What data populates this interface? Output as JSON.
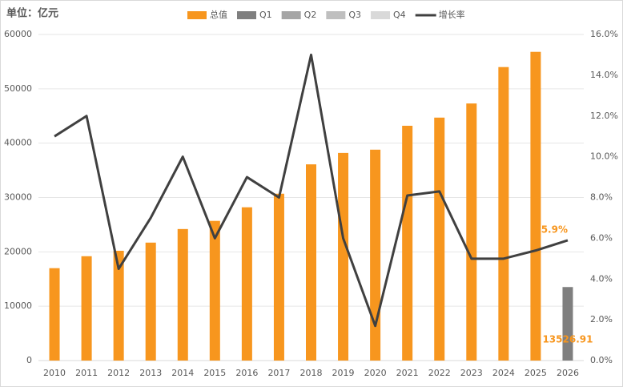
{
  "chart_data": {
    "type": "bar",
    "title": "单位：亿元",
    "categories": [
      "2010",
      "2011",
      "2012",
      "2013",
      "2014",
      "2015",
      "2016",
      "2017",
      "2018",
      "2019",
      "2020",
      "2021",
      "2022",
      "2023",
      "2024",
      "2025",
      "2026"
    ],
    "series": [
      {
        "name": "总值",
        "color": "#f7961e",
        "values": [
          17000,
          19200,
          20200,
          21700,
          24200,
          25700,
          28200,
          30700,
          36100,
          38200,
          38800,
          43200,
          44700,
          47300,
          54000,
          56800,
          null
        ]
      },
      {
        "name": "Q1",
        "color": "#7f7f7f",
        "values": [
          null,
          null,
          null,
          null,
          null,
          null,
          null,
          null,
          null,
          null,
          null,
          null,
          null,
          null,
          null,
          null,
          13526.91
        ],
        "value_labels": [
          null,
          null,
          null,
          null,
          null,
          null,
          null,
          null,
          null,
          null,
          null,
          null,
          null,
          null,
          null,
          null,
          "13526.91"
        ]
      },
      {
        "name": "Q2",
        "color": "#a5a5a5",
        "values": [
          null,
          null,
          null,
          null,
          null,
          null,
          null,
          null,
          null,
          null,
          null,
          null,
          null,
          null,
          null,
          null,
          null
        ]
      },
      {
        "name": "Q3",
        "color": "#bfbfbf",
        "values": [
          null,
          null,
          null,
          null,
          null,
          null,
          null,
          null,
          null,
          null,
          null,
          null,
          null,
          null,
          null,
          null,
          null
        ]
      },
      {
        "name": "Q4",
        "color": "#d9d9d9",
        "values": [
          null,
          null,
          null,
          null,
          null,
          null,
          null,
          null,
          null,
          null,
          null,
          null,
          null,
          null,
          null,
          null,
          null
        ]
      },
      {
        "name": "增长率",
        "color": "#404040",
        "type": "line",
        "axis": "y2",
        "values": [
          11.0,
          12.0,
          4.5,
          7.0,
          10.0,
          6.0,
          9.0,
          8.0,
          15.0,
          6.0,
          1.7,
          8.1,
          8.3,
          5.0,
          5.0,
          5.4,
          5.9
        ],
        "value_labels": [
          null,
          null,
          null,
          null,
          null,
          null,
          null,
          null,
          null,
          null,
          null,
          null,
          null,
          null,
          null,
          null,
          "5.9%"
        ]
      }
    ],
    "ylim": [
      0,
      60000
    ],
    "yticks": [
      0,
      10000,
      20000,
      30000,
      40000,
      50000,
      60000
    ],
    "y2lim": [
      0,
      16
    ],
    "y2ticks": [
      {
        "value": 0,
        "label": "0.0%"
      },
      {
        "value": 2,
        "label": "2.0%"
      },
      {
        "value": 4,
        "label": "4.0%"
      },
      {
        "value": 6,
        "label": "6.0%"
      },
      {
        "value": 8,
        "label": "8.0%"
      },
      {
        "value": 10,
        "label": "10.0%"
      },
      {
        "value": 12,
        "label": "12.0%"
      },
      {
        "value": 14,
        "label": "14.0%"
      },
      {
        "value": 16,
        "label": "16.0%"
      }
    ],
    "grid": true,
    "legend": "top"
  }
}
